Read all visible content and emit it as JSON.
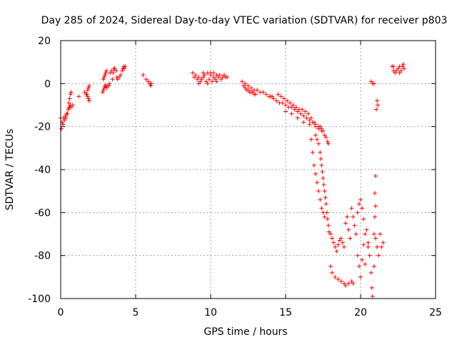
{
  "chart_data": {
    "type": "scatter",
    "title": "Day 285 of 2024, Sidereal Day-to-day VTEC variation (SDTVAR) for receiver p803",
    "xlabel": "GPS time / hours",
    "ylabel": "SDTVAR / TECUs",
    "xlim": [
      0,
      25
    ],
    "ylim": [
      -100,
      20
    ],
    "xticks": [
      0,
      5,
      10,
      15,
      20,
      25
    ],
    "yticks": [
      20,
      0,
      -20,
      -40,
      -60,
      -80,
      -100
    ],
    "grid": true,
    "marker": "+",
    "color": "#ff0000",
    "series": [
      {
        "name": "SDTVAR",
        "points": [
          [
            0.0,
            -16
          ],
          [
            0.05,
            -21
          ],
          [
            0.1,
            -18
          ],
          [
            0.15,
            -19
          ],
          [
            0.2,
            -16
          ],
          [
            0.25,
            -17
          ],
          [
            0.3,
            -15
          ],
          [
            0.35,
            -16
          ],
          [
            0.4,
            -14
          ],
          [
            0.45,
            -14
          ],
          [
            0.5,
            -12
          ],
          [
            0.55,
            -11
          ],
          [
            0.6,
            -11
          ],
          [
            0.65,
            -10
          ],
          [
            0.7,
            -11
          ],
          [
            0.55,
            -9
          ],
          [
            0.6,
            -7
          ],
          [
            0.65,
            -5
          ],
          [
            0.7,
            -4
          ],
          [
            0.8,
            -10
          ],
          [
            1.2,
            -6
          ],
          [
            1.6,
            -4
          ],
          [
            1.7,
            -5
          ],
          [
            1.75,
            -5
          ],
          [
            1.8,
            -6
          ],
          [
            1.85,
            -7
          ],
          [
            1.9,
            -8
          ],
          [
            1.8,
            -3
          ],
          [
            1.85,
            -2
          ],
          [
            1.9,
            -1
          ],
          [
            2.8,
            -4
          ],
          [
            2.85,
            -3
          ],
          [
            2.9,
            -2
          ],
          [
            2.95,
            -1
          ],
          [
            3.0,
            -1
          ],
          [
            3.05,
            -2
          ],
          [
            3.1,
            -1
          ],
          [
            3.2,
            -1
          ],
          [
            3.25,
            0
          ],
          [
            2.85,
            2
          ],
          [
            2.9,
            3
          ],
          [
            2.95,
            4
          ],
          [
            3.0,
            5
          ],
          [
            3.05,
            6
          ],
          [
            3.3,
            5
          ],
          [
            3.4,
            6
          ],
          [
            3.5,
            5
          ],
          [
            3.55,
            7
          ],
          [
            3.6,
            7
          ],
          [
            3.7,
            6
          ],
          [
            3.75,
            3
          ],
          [
            3.8,
            2
          ],
          [
            3.9,
            3
          ],
          [
            4.0,
            4
          ],
          [
            4.1,
            6
          ],
          [
            4.15,
            7
          ],
          [
            4.2,
            8
          ],
          [
            4.25,
            7
          ],
          [
            4.3,
            8
          ],
          [
            3.45,
            2
          ],
          [
            5.5,
            4
          ],
          [
            5.7,
            2
          ],
          [
            5.85,
            1
          ],
          [
            5.95,
            0
          ],
          [
            6.0,
            -1
          ],
          [
            6.05,
            0
          ],
          [
            8.8,
            5
          ],
          [
            8.9,
            3
          ],
          [
            9.0,
            4
          ],
          [
            9.1,
            2
          ],
          [
            9.2,
            3
          ],
          [
            9.3,
            1
          ],
          [
            9.4,
            2
          ],
          [
            9.5,
            3
          ],
          [
            9.6,
            4
          ],
          [
            9.7,
            1
          ],
          [
            9.8,
            5
          ],
          [
            9.9,
            2
          ],
          [
            10.0,
            4
          ],
          [
            10.1,
            1
          ],
          [
            10.2,
            3
          ],
          [
            10.3,
            2
          ],
          [
            10.4,
            4
          ],
          [
            10.5,
            3
          ],
          [
            10.6,
            4
          ],
          [
            10.7,
            2
          ],
          [
            10.8,
            3
          ],
          [
            10.9,
            4
          ],
          [
            11.0,
            3
          ],
          [
            11.1,
            3
          ],
          [
            9.5,
            5
          ],
          [
            9.8,
            0
          ],
          [
            10.0,
            5
          ],
          [
            10.4,
            1
          ],
          [
            9.2,
            0
          ],
          [
            10.2,
            5
          ],
          [
            12.1,
            1
          ],
          [
            12.2,
            -1
          ],
          [
            12.3,
            -2
          ],
          [
            12.4,
            -3
          ],
          [
            12.5,
            -3
          ],
          [
            12.6,
            -4
          ],
          [
            12.7,
            -4
          ],
          [
            12.8,
            -4
          ],
          [
            12.9,
            -5
          ],
          [
            13.0,
            -5
          ],
          [
            12.3,
            0
          ],
          [
            12.5,
            -1
          ],
          [
            12.7,
            -2
          ],
          [
            12.9,
            -3
          ],
          [
            13.1,
            -3
          ],
          [
            13.3,
            -4
          ],
          [
            13.5,
            -4
          ],
          [
            13.7,
            -5
          ],
          [
            13.9,
            -6
          ],
          [
            14.0,
            -6
          ],
          [
            14.1,
            -6
          ],
          [
            14.2,
            -7
          ],
          [
            14.4,
            -8
          ],
          [
            14.6,
            -9
          ],
          [
            14.8,
            -9
          ],
          [
            15.0,
            -10
          ],
          [
            15.2,
            -11
          ],
          [
            15.4,
            -11
          ],
          [
            15.6,
            -12
          ],
          [
            15.8,
            -13
          ],
          [
            16.0,
            -14
          ],
          [
            16.2,
            -15
          ],
          [
            16.4,
            -16
          ],
          [
            16.6,
            -17
          ],
          [
            16.8,
            -18
          ],
          [
            17.0,
            -19
          ],
          [
            17.2,
            -21
          ],
          [
            17.4,
            -22
          ],
          [
            14.5,
            -5
          ],
          [
            14.7,
            -6
          ],
          [
            14.9,
            -7
          ],
          [
            15.1,
            -8
          ],
          [
            15.3,
            -9
          ],
          [
            15.5,
            -10
          ],
          [
            15.7,
            -11
          ],
          [
            15.9,
            -12
          ],
          [
            16.1,
            -12
          ],
          [
            16.3,
            -13
          ],
          [
            16.5,
            -14
          ],
          [
            16.7,
            -16
          ],
          [
            16.9,
            -18
          ],
          [
            17.0,
            -20
          ],
          [
            15.0,
            -13
          ],
          [
            15.4,
            -14
          ],
          [
            15.8,
            -16
          ],
          [
            16.2,
            -18
          ],
          [
            16.6,
            -19
          ],
          [
            17.0,
            -24
          ],
          [
            17.1,
            -26
          ],
          [
            17.2,
            -28
          ],
          [
            17.3,
            -32
          ],
          [
            17.35,
            -35
          ],
          [
            17.4,
            -38
          ],
          [
            17.45,
            -41
          ],
          [
            17.5,
            -44
          ],
          [
            17.55,
            -47
          ],
          [
            17.6,
            -50
          ],
          [
            17.65,
            -53
          ],
          [
            17.7,
            -56
          ],
          [
            17.75,
            -60
          ],
          [
            17.8,
            -63
          ],
          [
            17.85,
            -66
          ],
          [
            17.9,
            -69
          ],
          [
            16.7,
            -26
          ],
          [
            16.8,
            -32
          ],
          [
            16.9,
            -38
          ],
          [
            17.0,
            -42
          ],
          [
            17.1,
            -46
          ],
          [
            17.2,
            -50
          ],
          [
            17.3,
            -54
          ],
          [
            17.4,
            -58
          ],
          [
            17.5,
            -60
          ],
          [
            17.6,
            -62
          ],
          [
            17.2,
            -20
          ],
          [
            17.3,
            -20
          ],
          [
            17.4,
            -21
          ],
          [
            17.5,
            -22
          ],
          [
            17.6,
            -24
          ],
          [
            17.7,
            -25
          ],
          [
            17.8,
            -27
          ],
          [
            17.85,
            -28
          ],
          [
            18.0,
            -70
          ],
          [
            18.1,
            -72
          ],
          [
            18.2,
            -74
          ],
          [
            18.3,
            -76
          ],
          [
            18.4,
            -78
          ],
          [
            18.5,
            -75
          ],
          [
            18.6,
            -73
          ],
          [
            18.7,
            -72
          ],
          [
            18.8,
            -74
          ],
          [
            18.9,
            -76
          ],
          [
            18.0,
            -85
          ],
          [
            18.1,
            -88
          ],
          [
            18.3,
            -90
          ],
          [
            18.5,
            -91
          ],
          [
            18.7,
            -92
          ],
          [
            18.9,
            -93
          ],
          [
            19.0,
            -94
          ],
          [
            19.2,
            -93
          ],
          [
            19.4,
            -92
          ],
          [
            19.5,
            -93
          ],
          [
            19.0,
            -65
          ],
          [
            19.1,
            -62
          ],
          [
            19.2,
            -68
          ],
          [
            19.3,
            -72
          ],
          [
            19.4,
            -58
          ],
          [
            19.5,
            -62
          ],
          [
            19.6,
            -66
          ],
          [
            19.7,
            -70
          ],
          [
            19.8,
            -60
          ],
          [
            19.9,
            -56
          ],
          [
            20.0,
            -54
          ],
          [
            20.1,
            -58
          ],
          [
            20.2,
            -63
          ],
          [
            19.8,
            -80
          ],
          [
            19.9,
            -85
          ],
          [
            20.0,
            -90
          ],
          [
            20.1,
            -82
          ],
          [
            20.2,
            -75
          ],
          [
            20.3,
            -70
          ],
          [
            20.4,
            -68
          ],
          [
            20.5,
            -74
          ],
          [
            20.6,
            -80
          ],
          [
            20.7,
            -88
          ],
          [
            20.75,
            -95
          ],
          [
            20.8,
            -99
          ],
          [
            20.9,
            -85
          ],
          [
            21.0,
            -72
          ],
          [
            21.1,
            -76
          ],
          [
            21.2,
            -80
          ],
          [
            21.3,
            -70
          ],
          [
            21.4,
            -76
          ],
          [
            21.5,
            -74
          ],
          [
            20.3,
            -84
          ],
          [
            20.5,
            -76
          ],
          [
            20.9,
            -70
          ],
          [
            20.7,
            1
          ],
          [
            20.8,
            0
          ],
          [
            20.9,
            0
          ],
          [
            21.0,
            -43
          ],
          [
            20.95,
            -51
          ],
          [
            21.0,
            -57
          ],
          [
            20.95,
            -62
          ],
          [
            21.1,
            -8
          ],
          [
            21.15,
            -10
          ],
          [
            21.05,
            -12
          ],
          [
            22.1,
            8
          ],
          [
            22.2,
            6
          ],
          [
            22.3,
            5
          ],
          [
            22.4,
            6
          ],
          [
            22.5,
            7
          ],
          [
            22.6,
            5
          ],
          [
            22.7,
            6
          ],
          [
            22.8,
            8
          ],
          [
            22.85,
            9
          ],
          [
            22.9,
            7
          ],
          [
            22.2,
            8
          ],
          [
            22.6,
            8
          ]
        ]
      }
    ]
  }
}
